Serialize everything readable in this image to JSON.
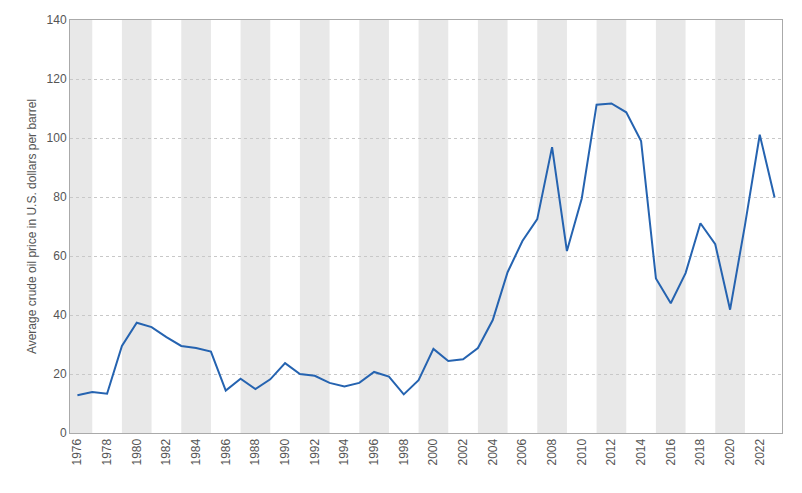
{
  "chart_data": {
    "type": "line",
    "ylabel": "Average crude oil price in U.S. dollars per barrel",
    "x": [
      1976,
      1977,
      1978,
      1979,
      1980,
      1981,
      1982,
      1983,
      1984,
      1985,
      1986,
      1987,
      1988,
      1989,
      1990,
      1991,
      1992,
      1993,
      1994,
      1995,
      1996,
      1997,
      1998,
      1999,
      2000,
      2001,
      2002,
      2003,
      2004,
      2005,
      2006,
      2007,
      2008,
      2009,
      2010,
      2011,
      2012,
      2013,
      2014,
      2015,
      2016,
      2017,
      2018,
      2019,
      2020,
      2021,
      2022,
      2023
    ],
    "values": [
      12.8,
      13.9,
      13.3,
      29.5,
      37.4,
      35.9,
      32.5,
      29.5,
      28.8,
      27.6,
      14.4,
      18.4,
      14.9,
      18.2,
      23.7,
      20.0,
      19.4,
      17.0,
      15.8,
      17.0,
      20.7,
      19.1,
      13.1,
      17.9,
      28.5,
      24.4,
      25.0,
      28.8,
      38.3,
      54.5,
      65.1,
      72.5,
      96.9,
      61.7,
      79.5,
      111.3,
      111.7,
      108.7,
      99.0,
      52.4,
      44.0,
      54.2,
      71.1,
      64.0,
      41.8,
      70.4,
      101.1,
      79.8
    ],
    "color": "#2563b0",
    "xlim": [
      1975.5,
      2023.5
    ],
    "xticks": [
      1976,
      1978,
      1980,
      1982,
      1984,
      1986,
      1988,
      1990,
      1992,
      1994,
      1996,
      1998,
      2000,
      2002,
      2004,
      2006,
      2008,
      2010,
      2012,
      2014,
      2016,
      2018,
      2020,
      2022
    ],
    "ylim": [
      0,
      140
    ],
    "yticks": [
      0,
      20,
      40,
      60,
      80,
      100,
      120,
      140
    ],
    "grid": true
  }
}
